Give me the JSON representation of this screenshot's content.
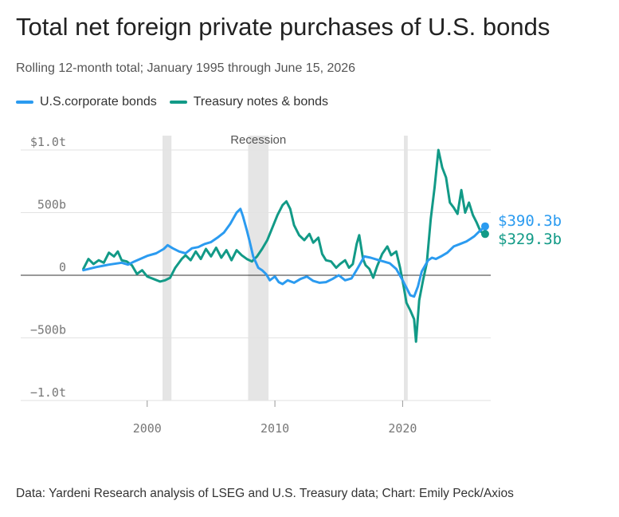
{
  "header": {
    "title": "Total net foreign private purchases of U.S. bonds",
    "subtitle": "Rolling 12-month total; January 1995 through June 15, 2026"
  },
  "footer": {
    "source": "Data: Yardeni Research analysis of LSEG and U.S. Treasury data; Chart: Emily Peck/Axios"
  },
  "colors": {
    "corporate": "#2b9bf0",
    "treasury": "#129a87",
    "recession": "#e5e5e5",
    "grid": "#e2e2e2",
    "zero": "#333333"
  },
  "chart_data": {
    "type": "line",
    "title": "Total net foreign private purchases of U.S. bonds",
    "subtitle": "Rolling 12-month total; January 1995 through June 15, 2026",
    "xlabel": "",
    "ylabel": "",
    "xlim": [
      1994.4,
      2026.9
    ],
    "ylim": [
      -1000,
      1000
    ],
    "y_ticks": [
      {
        "value": 1000,
        "label": "$1.0t"
      },
      {
        "value": 500,
        "label": "500b"
      },
      {
        "value": 0,
        "label": "0"
      },
      {
        "value": -500,
        "label": "−500b"
      },
      {
        "value": -1000,
        "label": "−1.0t"
      }
    ],
    "x_ticks": [
      {
        "value": 2000,
        "label": "2000"
      },
      {
        "value": 2010,
        "label": "2010"
      },
      {
        "value": 2020,
        "label": "2020"
      }
    ],
    "grid": true,
    "legend_position": "top-left",
    "recessions": [
      {
        "start": 2001.2,
        "end": 2001.9
      },
      {
        "start": 2007.9,
        "end": 2009.5
      },
      {
        "start": 2020.1,
        "end": 2020.4
      }
    ],
    "recession_label": "Recession",
    "series": [
      {
        "name": "U.S.corporate bonds",
        "color": "#2b9bf0",
        "end_label": "$390.3b",
        "end_value": 390.3,
        "points": [
          [
            1995.0,
            40
          ],
          [
            1996.0,
            65
          ],
          [
            1997.0,
            85
          ],
          [
            1998.0,
            100
          ],
          [
            1998.5,
            85
          ],
          [
            1999.0,
            110
          ],
          [
            2000.0,
            155
          ],
          [
            2000.7,
            175
          ],
          [
            2001.3,
            210
          ],
          [
            2001.6,
            240
          ],
          [
            2002.0,
            215
          ],
          [
            2002.5,
            190
          ],
          [
            2003.0,
            175
          ],
          [
            2003.5,
            215
          ],
          [
            2004.0,
            225
          ],
          [
            2004.5,
            250
          ],
          [
            2005.0,
            265
          ],
          [
            2005.5,
            300
          ],
          [
            2006.0,
            340
          ],
          [
            2006.5,
            410
          ],
          [
            2007.0,
            500
          ],
          [
            2007.3,
            530
          ],
          [
            2007.5,
            470
          ],
          [
            2007.8,
            360
          ],
          [
            2008.0,
            280
          ],
          [
            2008.3,
            150
          ],
          [
            2008.7,
            60
          ],
          [
            2009.0,
            40
          ],
          [
            2009.3,
            10
          ],
          [
            2009.6,
            -40
          ],
          [
            2010.0,
            -10
          ],
          [
            2010.3,
            -55
          ],
          [
            2010.6,
            -70
          ],
          [
            2011.0,
            -40
          ],
          [
            2011.5,
            -60
          ],
          [
            2012.0,
            -30
          ],
          [
            2012.5,
            -10
          ],
          [
            2013.0,
            -45
          ],
          [
            2013.5,
            -60
          ],
          [
            2014.0,
            -55
          ],
          [
            2014.5,
            -30
          ],
          [
            2015.0,
            0
          ],
          [
            2015.5,
            -40
          ],
          [
            2016.0,
            -25
          ],
          [
            2016.5,
            60
          ],
          [
            2017.0,
            150
          ],
          [
            2017.5,
            140
          ],
          [
            2018.0,
            125
          ],
          [
            2018.5,
            110
          ],
          [
            2019.0,
            95
          ],
          [
            2019.5,
            50
          ],
          [
            2020.0,
            -40
          ],
          [
            2020.3,
            -100
          ],
          [
            2020.6,
            -160
          ],
          [
            2020.9,
            -170
          ],
          [
            2021.2,
            -90
          ],
          [
            2021.5,
            30
          ],
          [
            2022.0,
            120
          ],
          [
            2022.3,
            140
          ],
          [
            2022.6,
            130
          ],
          [
            2023.0,
            150
          ],
          [
            2023.5,
            180
          ],
          [
            2024.0,
            230
          ],
          [
            2024.5,
            250
          ],
          [
            2025.0,
            270
          ],
          [
            2025.3,
            290
          ],
          [
            2025.6,
            310
          ],
          [
            2026.0,
            350
          ],
          [
            2026.46,
            390.3
          ]
        ]
      },
      {
        "name": "Treasury notes & bonds",
        "color": "#129a87",
        "end_label": "$329.3b",
        "end_value": 329.3,
        "points": [
          [
            1995.0,
            50
          ],
          [
            1995.4,
            130
          ],
          [
            1995.8,
            90
          ],
          [
            1996.2,
            120
          ],
          [
            1996.6,
            100
          ],
          [
            1997.0,
            180
          ],
          [
            1997.4,
            150
          ],
          [
            1997.7,
            190
          ],
          [
            1998.0,
            120
          ],
          [
            1998.4,
            110
          ],
          [
            1998.8,
            80
          ],
          [
            1999.2,
            10
          ],
          [
            1999.6,
            40
          ],
          [
            2000.0,
            -10
          ],
          [
            2000.5,
            -30
          ],
          [
            2001.0,
            -50
          ],
          [
            2001.4,
            -40
          ],
          [
            2001.8,
            -20
          ],
          [
            2002.2,
            60
          ],
          [
            2002.7,
            130
          ],
          [
            2003.0,
            160
          ],
          [
            2003.4,
            120
          ],
          [
            2003.8,
            190
          ],
          [
            2004.2,
            130
          ],
          [
            2004.6,
            210
          ],
          [
            2005.0,
            150
          ],
          [
            2005.4,
            220
          ],
          [
            2005.8,
            140
          ],
          [
            2006.2,
            200
          ],
          [
            2006.6,
            120
          ],
          [
            2007.0,
            200
          ],
          [
            2007.4,
            160
          ],
          [
            2007.8,
            130
          ],
          [
            2008.2,
            110
          ],
          [
            2008.6,
            150
          ],
          [
            2009.0,
            210
          ],
          [
            2009.4,
            280
          ],
          [
            2009.8,
            380
          ],
          [
            2010.2,
            480
          ],
          [
            2010.6,
            560
          ],
          [
            2010.9,
            590
          ],
          [
            2011.2,
            530
          ],
          [
            2011.5,
            400
          ],
          [
            2011.9,
            320
          ],
          [
            2012.3,
            280
          ],
          [
            2012.7,
            330
          ],
          [
            2013.0,
            260
          ],
          [
            2013.4,
            300
          ],
          [
            2013.7,
            170
          ],
          [
            2014.0,
            120
          ],
          [
            2014.4,
            110
          ],
          [
            2014.8,
            60
          ],
          [
            2015.1,
            90
          ],
          [
            2015.5,
            120
          ],
          [
            2015.8,
            60
          ],
          [
            2016.1,
            90
          ],
          [
            2016.4,
            250
          ],
          [
            2016.6,
            320
          ],
          [
            2016.9,
            130
          ],
          [
            2017.1,
            80
          ],
          [
            2017.4,
            50
          ],
          [
            2017.7,
            -20
          ],
          [
            2018.0,
            70
          ],
          [
            2018.4,
            170
          ],
          [
            2018.8,
            230
          ],
          [
            2019.1,
            160
          ],
          [
            2019.5,
            190
          ],
          [
            2019.8,
            60
          ],
          [
            2020.1,
            -100
          ],
          [
            2020.3,
            -220
          ],
          [
            2020.6,
            -280
          ],
          [
            2020.9,
            -350
          ],
          [
            2021.05,
            -530
          ],
          [
            2021.3,
            -200
          ],
          [
            2021.6,
            -40
          ],
          [
            2021.9,
            100
          ],
          [
            2022.2,
            450
          ],
          [
            2022.5,
            700
          ],
          [
            2022.8,
            1000
          ],
          [
            2023.1,
            860
          ],
          [
            2023.4,
            780
          ],
          [
            2023.7,
            580
          ],
          [
            2024.0,
            540
          ],
          [
            2024.3,
            490
          ],
          [
            2024.6,
            680
          ],
          [
            2024.9,
            500
          ],
          [
            2025.2,
            580
          ],
          [
            2025.5,
            480
          ],
          [
            2025.8,
            420
          ],
          [
            2026.1,
            350
          ],
          [
            2026.46,
            329.3
          ]
        ]
      }
    ]
  }
}
